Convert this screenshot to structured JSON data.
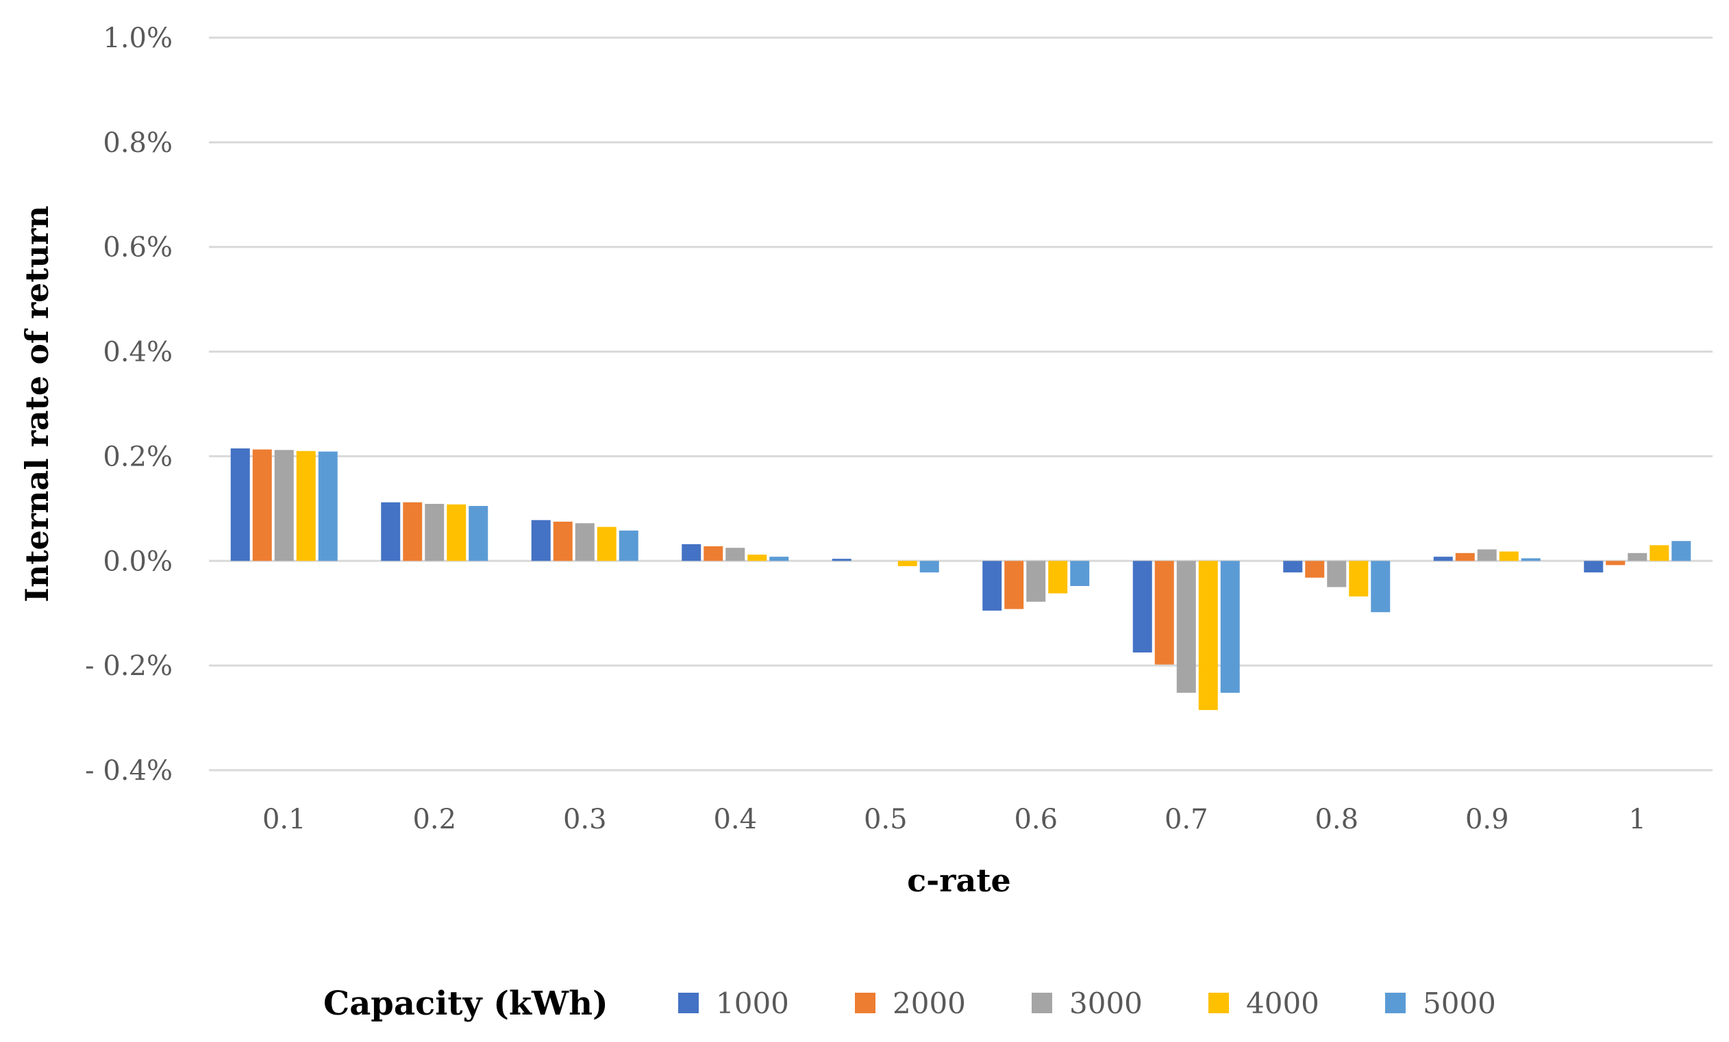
{
  "chart_data": {
    "type": "bar",
    "xlabel": "c-rate",
    "ylabel": "Internal rate of return",
    "categories": [
      "0.1",
      "0.2",
      "0.3",
      "0.4",
      "0.5",
      "0.6",
      "0.7",
      "0.8",
      "0.9",
      "1"
    ],
    "ylim": [
      -0.4,
      1.0
    ],
    "yticks": [
      1.0,
      0.8,
      0.6,
      0.4,
      0.2,
      0.0,
      -0.2,
      -0.4
    ],
    "ytick_labels": [
      "1.0%",
      "0.8%",
      "0.6%",
      "0.4%",
      "0.2%",
      "0.0%",
      "- 0.2%",
      "- 0.4%"
    ],
    "grid": true,
    "legend": {
      "title": "Capacity (kWh)",
      "position": "bottom"
    },
    "series": [
      {
        "name": "1000",
        "color": "#4472c4",
        "values": [
          0.215,
          0.112,
          0.078,
          0.032,
          0.004,
          -0.095,
          -0.175,
          -0.022,
          0.008,
          -0.022
        ]
      },
      {
        "name": "2000",
        "color": "#ed7d31",
        "values": [
          0.213,
          0.112,
          0.075,
          0.028,
          0.0,
          -0.092,
          -0.198,
          -0.032,
          0.015,
          -0.008
        ]
      },
      {
        "name": "3000",
        "color": "#a5a5a5",
        "values": [
          0.212,
          0.109,
          0.072,
          0.025,
          0.0,
          -0.078,
          -0.252,
          -0.05,
          0.022,
          0.015
        ]
      },
      {
        "name": "4000",
        "color": "#ffc000",
        "values": [
          0.21,
          0.108,
          0.065,
          0.012,
          -0.01,
          -0.062,
          -0.285,
          -0.068,
          0.018,
          0.03
        ]
      },
      {
        "name": "5000",
        "color": "#5b9bd5",
        "values": [
          0.209,
          0.105,
          0.058,
          0.008,
          -0.022,
          -0.048,
          -0.252,
          -0.098,
          0.005,
          0.038
        ]
      }
    ]
  }
}
